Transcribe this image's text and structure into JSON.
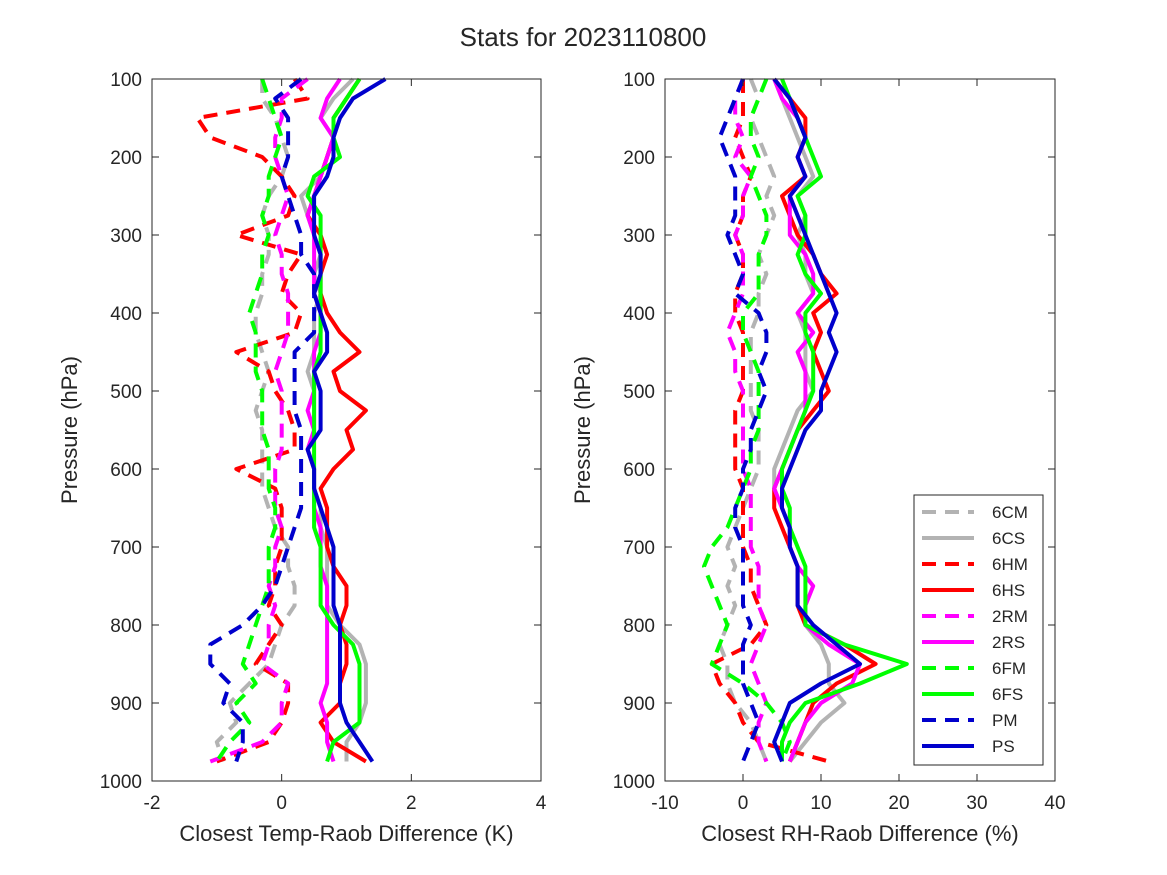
{
  "chart_data": {
    "title": "Stats for 2023110800",
    "pressure_levels": [
      100,
      125,
      150,
      175,
      200,
      225,
      250,
      275,
      300,
      325,
      350,
      375,
      400,
      425,
      450,
      475,
      500,
      525,
      550,
      575,
      600,
      625,
      650,
      675,
      700,
      725,
      750,
      775,
      800,
      825,
      850,
      875,
      900,
      925,
      950,
      975
    ],
    "legend": {
      "placement": "lower-right of right panel",
      "entries": [
        {
          "label": "6CM",
          "color": "#b3b3b3",
          "style": "dashed"
        },
        {
          "label": "6CS",
          "color": "#b3b3b3",
          "style": "solid"
        },
        {
          "label": "6HM",
          "color": "#ff0000",
          "style": "dashed"
        },
        {
          "label": "6HS",
          "color": "#ff0000",
          "style": "solid"
        },
        {
          "label": "2RM",
          "color": "#ff00ff",
          "style": "dashed"
        },
        {
          "label": "2RS",
          "color": "#ff00ff",
          "style": "solid"
        },
        {
          "label": "6FM",
          "color": "#00ff00",
          "style": "dashed"
        },
        {
          "label": "6FS",
          "color": "#00ff00",
          "style": "solid"
        },
        {
          "label": "PM",
          "color": "#0000cc",
          "style": "dashed"
        },
        {
          "label": "PS",
          "color": "#0000cc",
          "style": "solid"
        }
      ]
    },
    "panels": [
      {
        "type": "line",
        "xlabel": "Closest Temp-Raob Difference (K)",
        "ylabel": "Pressure (hPa)",
        "xlim": [
          -2,
          4
        ],
        "ylim": [
          1000,
          100
        ],
        "xticks": [
          "-2",
          "0",
          "2",
          "4"
        ],
        "yticks": [
          "100",
          "200",
          "300",
          "400",
          "500",
          "600",
          "700",
          "800",
          "900",
          "1000"
        ],
        "grid": false,
        "series": [
          {
            "name": "6CM",
            "values": [
              -0.3,
              -0.3,
              -0.1,
              0.0,
              0.1,
              0.0,
              -0.2,
              -0.3,
              -0.2,
              -0.2,
              -0.3,
              -0.3,
              -0.4,
              -0.4,
              -0.3,
              -0.2,
              -0.3,
              -0.4,
              -0.3,
              -0.3,
              -0.3,
              -0.3,
              -0.2,
              -0.1,
              0.1,
              0.1,
              0.2,
              0.2,
              0.0,
              -0.1,
              -0.2,
              -0.5,
              -0.8,
              -0.7,
              -1.0,
              -0.9
            ]
          },
          {
            "name": "6CS",
            "values": [
              1.1,
              0.8,
              0.6,
              0.8,
              0.7,
              0.6,
              0.3,
              0.4,
              0.5,
              0.6,
              0.5,
              0.6,
              0.5,
              0.5,
              0.5,
              0.4,
              0.5,
              0.5,
              0.5,
              0.4,
              0.5,
              0.5,
              0.6,
              0.6,
              0.7,
              0.7,
              0.7,
              0.7,
              0.9,
              1.2,
              1.3,
              1.3,
              1.3,
              1.2,
              1.0,
              1.0
            ]
          },
          {
            "name": "6HM",
            "values": [
              0.2,
              0.4,
              -1.3,
              -1.1,
              -0.3,
              0.0,
              0.2,
              0.1,
              -0.7,
              0.3,
              0.1,
              0.0,
              0.3,
              0.2,
              -0.7,
              -0.2,
              -0.1,
              0.1,
              0.2,
              0.2,
              -0.7,
              -0.1,
              0.0,
              0.0,
              0.0,
              -0.1,
              -0.1,
              -0.2,
              0.0,
              -0.2,
              -0.4,
              0.1,
              0.1,
              0.0,
              -0.2,
              -1.0
            ]
          },
          {
            "name": "6HS",
            "values": [
              1.2,
              1.0,
              0.8,
              0.8,
              0.7,
              0.6,
              0.5,
              0.4,
              0.6,
              0.7,
              0.6,
              0.6,
              0.7,
              0.9,
              1.2,
              0.8,
              0.9,
              1.3,
              1.0,
              1.1,
              0.8,
              0.6,
              0.7,
              0.7,
              0.7,
              0.8,
              1.0,
              1.0,
              0.9,
              1.0,
              1.0,
              0.9,
              0.9,
              0.6,
              0.8,
              1.3
            ]
          },
          {
            "name": "2RM",
            "values": [
              0.4,
              0.0,
              0.0,
              -0.1,
              -0.1,
              0.0,
              0.1,
              0.0,
              -0.1,
              0.0,
              0.0,
              0.1,
              0.1,
              0.1,
              0.0,
              -0.1,
              0.0,
              0.0,
              0.0,
              0.0,
              -0.1,
              -0.1,
              -0.1,
              0.0,
              -0.1,
              -0.1,
              -0.2,
              -0.1,
              -0.2,
              -0.2,
              -0.3,
              0.1,
              0.0,
              0.0,
              -0.3,
              -1.1
            ]
          },
          {
            "name": "2RS",
            "values": [
              0.9,
              0.7,
              0.6,
              0.8,
              0.7,
              0.6,
              0.5,
              0.4,
              0.5,
              0.5,
              0.5,
              0.5,
              0.6,
              0.6,
              0.5,
              0.5,
              0.5,
              0.4,
              0.5,
              0.4,
              0.5,
              0.5,
              0.5,
              0.6,
              0.6,
              0.6,
              0.7,
              0.7,
              0.7,
              0.7,
              0.7,
              0.7,
              0.6,
              0.7,
              0.7,
              0.8
            ]
          },
          {
            "name": "6FM",
            "values": [
              -0.3,
              -0.2,
              -0.1,
              0.0,
              -0.1,
              -0.2,
              -0.2,
              -0.3,
              -0.2,
              -0.3,
              -0.3,
              -0.4,
              -0.5,
              -0.4,
              -0.4,
              -0.4,
              -0.3,
              -0.3,
              -0.3,
              -0.2,
              -0.2,
              -0.2,
              -0.1,
              -0.1,
              -0.2,
              -0.2,
              -0.2,
              -0.3,
              -0.4,
              -0.5,
              -0.6,
              -0.4,
              -0.7,
              -0.5,
              -0.8,
              -1.0
            ]
          },
          {
            "name": "6FS",
            "values": [
              1.2,
              1.0,
              0.8,
              0.8,
              0.9,
              0.5,
              0.4,
              0.6,
              0.6,
              0.6,
              0.6,
              0.6,
              0.6,
              0.6,
              0.6,
              0.5,
              0.5,
              0.5,
              0.5,
              0.5,
              0.5,
              0.5,
              0.5,
              0.5,
              0.6,
              0.6,
              0.6,
              0.6,
              0.8,
              1.1,
              1.2,
              1.2,
              1.2,
              1.2,
              0.8,
              0.7
            ]
          },
          {
            "name": "PM",
            "values": [
              0.3,
              -0.1,
              0.1,
              0.1,
              0.1,
              0.0,
              0.1,
              0.2,
              0.3,
              0.3,
              0.5,
              0.5,
              0.5,
              0.5,
              0.2,
              0.2,
              0.2,
              0.2,
              0.3,
              0.3,
              0.3,
              0.3,
              0.3,
              0.2,
              0.1,
              0.0,
              -0.1,
              -0.3,
              -0.6,
              -1.1,
              -1.1,
              -0.8,
              -0.9,
              -0.6,
              -0.6,
              -0.7
            ]
          },
          {
            "name": "PS",
            "values": [
              1.6,
              1.1,
              0.9,
              0.8,
              0.8,
              0.7,
              0.5,
              0.5,
              0.5,
              0.6,
              0.6,
              0.5,
              0.6,
              0.7,
              0.7,
              0.5,
              0.6,
              0.6,
              0.6,
              0.4,
              0.5,
              0.5,
              0.6,
              0.7,
              0.8,
              0.8,
              0.8,
              0.8,
              0.9,
              0.9,
              0.9,
              0.9,
              0.9,
              1.0,
              1.2,
              1.4
            ]
          }
        ]
      },
      {
        "type": "line",
        "xlabel": "Closest RH-Raob Difference (%)",
        "ylabel": "Pressure (hPa)",
        "xlim": [
          -10,
          40
        ],
        "ylim": [
          1000,
          100
        ],
        "xticks": [
          "-10",
          "0",
          "10",
          "20",
          "30",
          "40"
        ],
        "yticks": [
          "100",
          "200",
          "300",
          "400",
          "500",
          "600",
          "700",
          "800",
          "900",
          "1000"
        ],
        "grid": false,
        "series": [
          {
            "name": "6CM",
            "values": [
              1.0,
              2.0,
              1.0,
              2.0,
              3.0,
              4.0,
              3.0,
              4.0,
              3.0,
              2.0,
              3.0,
              2.0,
              2.0,
              1.0,
              1.0,
              1.0,
              1.0,
              1.0,
              2.0,
              2.0,
              2.0,
              1.0,
              0.0,
              -1.0,
              -2.0,
              -1.0,
              -2.0,
              -1.0,
              -2.0,
              -3.0,
              -2.0,
              -2.0,
              -1.0,
              1.0,
              2.0,
              3.0
            ]
          },
          {
            "name": "6CS",
            "values": [
              4.0,
              5.0,
              6.0,
              7.0,
              8.0,
              9.0,
              7.0,
              8.0,
              7.0,
              8.0,
              8.0,
              9.0,
              7.0,
              8.0,
              8.0,
              8.0,
              9.0,
              7.0,
              6.0,
              5.0,
              4.0,
              4.0,
              5.0,
              6.0,
              6.0,
              7.0,
              7.0,
              7.0,
              8.0,
              10.0,
              11.0,
              11.0,
              13.0,
              10.0,
              8.0,
              6.0
            ]
          },
          {
            "name": "6HM",
            "values": [
              0.0,
              0.0,
              0.0,
              -1.0,
              0.0,
              1.0,
              0.0,
              0.0,
              -1.0,
              0.0,
              0.0,
              -1.0,
              -1.0,
              0.0,
              0.0,
              0.0,
              0.0,
              -1.0,
              -1.0,
              -1.0,
              -1.0,
              0.0,
              0.0,
              0.0,
              0.0,
              1.0,
              1.0,
              2.0,
              3.0,
              1.0,
              -4.0,
              -3.0,
              -1.0,
              0.0,
              2.0,
              11.0
            ]
          },
          {
            "name": "6HS",
            "values": [
              4.0,
              6.0,
              8.0,
              8.0,
              7.0,
              8.0,
              5.0,
              6.0,
              7.0,
              9.0,
              10.0,
              12.0,
              9.0,
              10.0,
              9.0,
              10.0,
              11.0,
              9.0,
              7.0,
              6.0,
              5.0,
              4.0,
              4.0,
              5.0,
              6.0,
              7.0,
              7.0,
              7.0,
              8.0,
              13.0,
              17.0,
              12.0,
              9.0,
              8.0,
              7.0,
              6.0
            ]
          },
          {
            "name": "2RM",
            "values": [
              0.0,
              -1.0,
              -1.0,
              0.0,
              -1.0,
              1.0,
              0.0,
              0.0,
              -1.0,
              0.0,
              0.0,
              0.0,
              -1.0,
              -2.0,
              -1.0,
              -1.0,
              0.0,
              0.0,
              0.0,
              0.0,
              0.0,
              1.0,
              1.0,
              1.0,
              1.0,
              2.0,
              2.0,
              2.0,
              3.0,
              2.0,
              1.0,
              2.0,
              3.0,
              2.0,
              2.0,
              3.0
            ]
          },
          {
            "name": "2RS",
            "values": [
              4.0,
              5.0,
              7.0,
              8.0,
              7.0,
              8.0,
              6.0,
              6.0,
              6.0,
              8.0,
              9.0,
              9.0,
              7.0,
              9.0,
              7.0,
              8.0,
              8.0,
              8.0,
              7.0,
              6.0,
              5.0,
              4.0,
              5.0,
              6.0,
              6.0,
              7.0,
              9.0,
              8.0,
              8.0,
              11.0,
              15.0,
              14.0,
              10.0,
              8.0,
              7.0,
              6.0
            ]
          },
          {
            "name": "6FM",
            "values": [
              3.0,
              2.0,
              1.0,
              1.0,
              2.0,
              1.0,
              2.0,
              3.0,
              3.0,
              2.0,
              2.0,
              2.0,
              0.0,
              0.0,
              1.0,
              2.0,
              2.0,
              2.0,
              2.0,
              1.0,
              1.0,
              0.0,
              -1.0,
              -2.0,
              -4.0,
              -5.0,
              -4.0,
              -3.0,
              -2.0,
              -3.0,
              -4.0,
              0.0,
              3.0,
              5.0,
              6.0,
              5.0
            ]
          },
          {
            "name": "6FS",
            "values": [
              5.0,
              6.0,
              7.0,
              8.0,
              9.0,
              10.0,
              7.0,
              8.0,
              8.0,
              7.0,
              8.0,
              10.0,
              8.0,
              8.0,
              9.0,
              9.0,
              9.0,
              8.0,
              7.0,
              6.0,
              5.0,
              5.0,
              6.0,
              6.0,
              7.0,
              8.0,
              8.0,
              8.0,
              8.0,
              13.0,
              21.0,
              15.0,
              8.0,
              6.0,
              5.0,
              5.0
            ]
          },
          {
            "name": "PM",
            "values": [
              0.0,
              -1.0,
              -2.0,
              -3.0,
              -2.0,
              -1.0,
              -1.0,
              -1.0,
              -2.0,
              -1.0,
              0.0,
              -1.0,
              2.0,
              3.0,
              3.0,
              2.0,
              3.0,
              2.0,
              1.0,
              1.0,
              0.0,
              0.0,
              -1.0,
              -1.0,
              0.0,
              0.0,
              0.0,
              0.0,
              1.0,
              0.0,
              0.0,
              0.0,
              1.0,
              2.0,
              1.0,
              0.0
            ]
          },
          {
            "name": "PS",
            "values": [
              4.0,
              6.0,
              7.0,
              8.0,
              7.0,
              8.0,
              6.0,
              7.0,
              8.0,
              9.0,
              10.0,
              11.0,
              12.0,
              11.0,
              12.0,
              11.0,
              10.0,
              10.0,
              8.0,
              7.0,
              6.0,
              5.0,
              5.0,
              6.0,
              6.0,
              7.0,
              7.0,
              7.0,
              9.0,
              12.0,
              15.0,
              10.0,
              6.0,
              5.0,
              4.0,
              5.0
            ]
          }
        ]
      }
    ]
  }
}
